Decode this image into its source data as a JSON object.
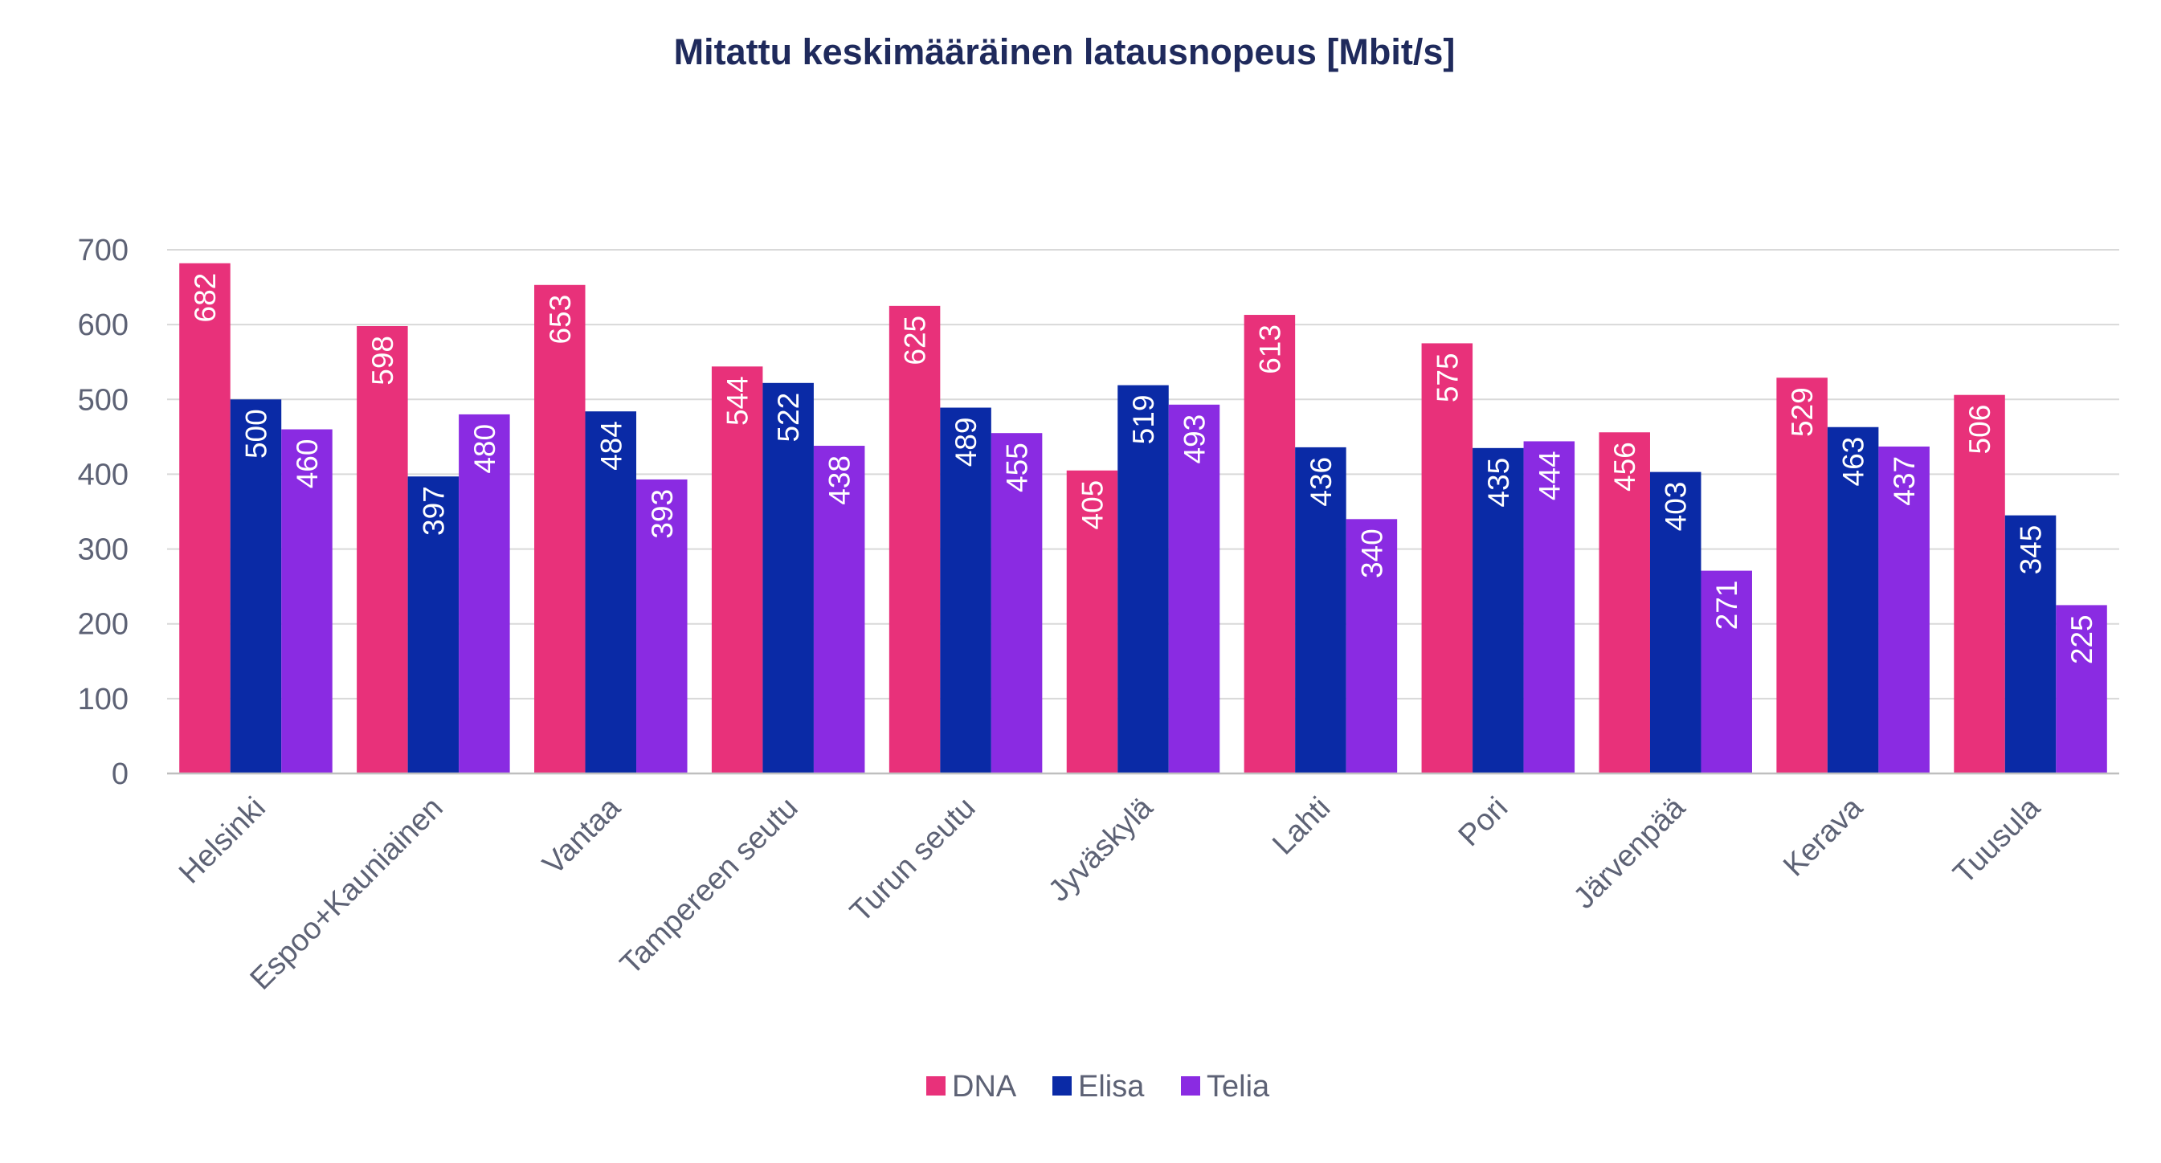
{
  "chart_data": {
    "type": "bar",
    "title": "Mitattu keskimääräinen latausnopeus [Mbit/s]",
    "xlabel": "",
    "ylabel": "",
    "ylim": [
      0,
      700
    ],
    "yticks": [
      0,
      100,
      200,
      300,
      400,
      500,
      600,
      700
    ],
    "grid": true,
    "legend_position": "bottom",
    "categories": [
      "Helsinki",
      "Espoo+Kauniainen",
      "Vantaa",
      "Tampereen seutu",
      "Turun seutu",
      "Jyväskylä",
      "Lahti",
      "Pori",
      "Järvenpää",
      "Kerava",
      "Tuusula"
    ],
    "series": [
      {
        "name": "DNA",
        "color": "#e8317a",
        "values": [
          682,
          598,
          653,
          544,
          625,
          405,
          613,
          575,
          456,
          529,
          506
        ]
      },
      {
        "name": "Elisa",
        "color": "#0a2aa6",
        "values": [
          500,
          397,
          484,
          522,
          489,
          519,
          436,
          435,
          403,
          463,
          345
        ]
      },
      {
        "name": "Telia",
        "color": "#8a2be2",
        "values": [
          460,
          480,
          393,
          438,
          455,
          493,
          340,
          444,
          271,
          437,
          225
        ]
      }
    ]
  }
}
